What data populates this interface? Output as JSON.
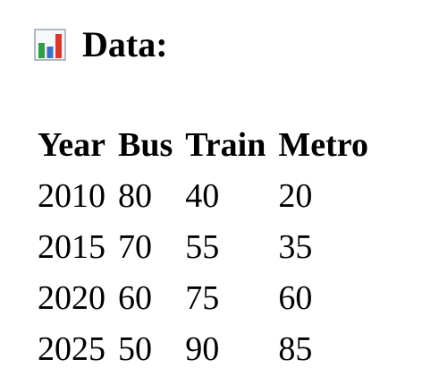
{
  "heading": {
    "icon": "bar-chart-icon",
    "title": "Data:"
  },
  "icon_colors": {
    "frame": "#9aa3ad",
    "bar_green": "#2f9e44",
    "bar_blue": "#3d6fc4",
    "bar_red": "#d63a2f"
  },
  "table": {
    "headers": [
      "Year",
      "Bus",
      "Train",
      "Metro"
    ],
    "rows": [
      [
        "2010",
        "80",
        "40",
        "20"
      ],
      [
        "2015",
        "70",
        "55",
        "35"
      ],
      [
        "2020",
        "60",
        "75",
        "60"
      ],
      [
        "2025",
        "50",
        "90",
        "85"
      ]
    ]
  }
}
